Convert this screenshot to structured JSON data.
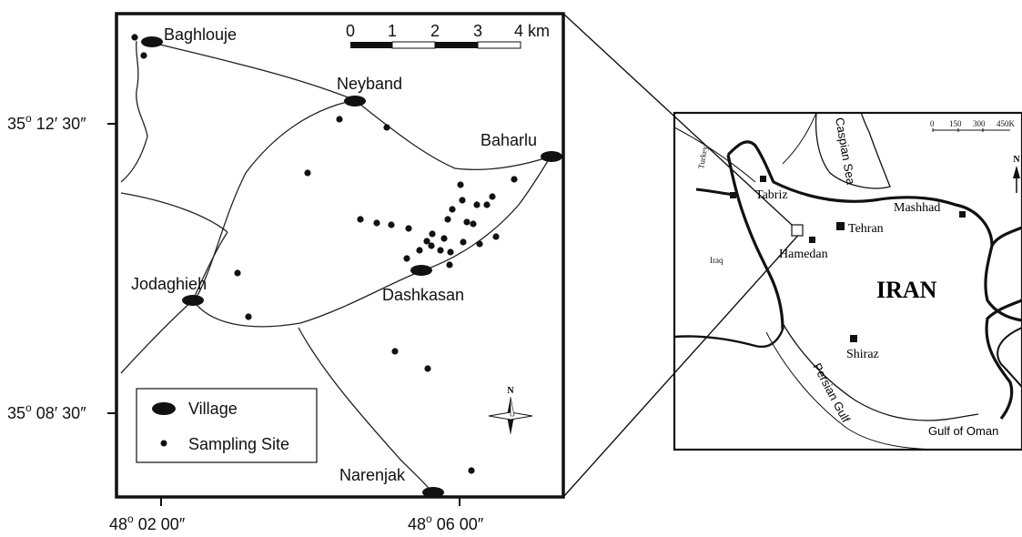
{
  "detail_map": {
    "villages": [
      {
        "name": "Baghlouje"
      },
      {
        "name": "Neyband"
      },
      {
        "name": "Baharlu"
      },
      {
        "name": "Jodaghieh"
      },
      {
        "name": "Dashkasan"
      },
      {
        "name": "Narenjak"
      }
    ],
    "scale_bar": {
      "ticks": [
        "0",
        "1",
        "2",
        "3",
        "4"
      ],
      "unit": "km"
    },
    "legend": {
      "village_label": "Village",
      "site_label": "Sampling Site"
    },
    "north_label": "N",
    "lat_labels": [
      {
        "deg": "35",
        "min": "12",
        "sec": "30"
      },
      {
        "deg": "35",
        "min": "08",
        "sec": "30"
      }
    ],
    "lon_labels": [
      {
        "deg": "48",
        "min": "02",
        "sec": "00"
      },
      {
        "deg": "48",
        "min": "06",
        "sec": "00"
      }
    ]
  },
  "inset_map": {
    "country_label": "IRAN",
    "cities": [
      "Tabriz",
      "Tehran",
      "Mashhad",
      "Hamedan",
      "Shiraz"
    ],
    "water_labels": [
      "Caspian Sea",
      "Persian Gulf",
      "Gulf of Oman"
    ],
    "neighbors": [
      "Turkey",
      "Iraq"
    ],
    "scale_ticks": [
      "0",
      "150",
      "300",
      "450K"
    ],
    "north_label": "N"
  }
}
